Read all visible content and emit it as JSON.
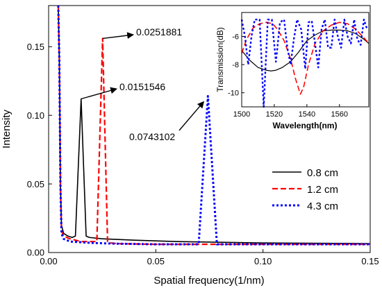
{
  "chart_data": [
    {
      "id": "main",
      "type": "line",
      "title": "",
      "xlabel": "Spatial frequency(1/nm)",
      "ylabel": "Intensity",
      "xlim": [
        0,
        0.15
      ],
      "ylim": [
        0,
        0.18
      ],
      "xticks": [
        0.0,
        0.05,
        0.1,
        0.15
      ],
      "xtick_labels": [
        "0.00",
        "0.05",
        "0.10",
        "0.15"
      ],
      "yticks": [
        0.0,
        0.05,
        0.1,
        0.15
      ],
      "ytick_labels": [
        "0.00",
        "0.05",
        "0.10",
        "0.15"
      ],
      "grid": false,
      "legend_position": "lower-right",
      "series": [
        {
          "name": "0.8 cm",
          "color": "#000000",
          "dash": "solid",
          "x": [
            0.0045,
            0.005,
            0.0055,
            0.006,
            0.007,
            0.009,
            0.011,
            0.0125,
            0.0151546,
            0.0175,
            0.019,
            0.025,
            0.04,
            0.06,
            0.08,
            0.1,
            0.12,
            0.15
          ],
          "y": [
            0.18,
            0.14,
            0.05,
            0.02,
            0.014,
            0.012,
            0.011,
            0.012,
            0.112,
            0.012,
            0.011,
            0.01,
            0.009,
            0.008,
            0.0075,
            0.007,
            0.0068,
            0.0065
          ]
        },
        {
          "name": "1.2 cm",
          "color": "#ff0000",
          "dash": "dashed",
          "x": [
            0.0045,
            0.005,
            0.0055,
            0.006,
            0.007,
            0.01,
            0.015,
            0.02,
            0.0225,
            0.0251881,
            0.0275,
            0.029,
            0.032,
            0.05,
            0.08,
            0.1,
            0.12,
            0.15
          ],
          "y": [
            0.18,
            0.14,
            0.05,
            0.016,
            0.012,
            0.01,
            0.008,
            0.008,
            0.008,
            0.156,
            0.008,
            0.007,
            0.0065,
            0.006,
            0.006,
            0.006,
            0.006,
            0.006
          ]
        },
        {
          "name": "4.3 cm",
          "color": "#0000ff",
          "dash": "dotted",
          "x": [
            0.0045,
            0.005,
            0.0055,
            0.006,
            0.007,
            0.01,
            0.02,
            0.03,
            0.05,
            0.065,
            0.07,
            0.0743102,
            0.0785,
            0.082,
            0.1,
            0.12,
            0.15
          ],
          "y": [
            0.18,
            0.14,
            0.05,
            0.014,
            0.01,
            0.008,
            0.007,
            0.0065,
            0.006,
            0.006,
            0.006,
            0.114,
            0.006,
            0.006,
            0.006,
            0.006,
            0.006
          ]
        }
      ],
      "annotations": [
        {
          "text": "0.0251881",
          "tip_x": 0.0251881,
          "tip_y": 0.156
        },
        {
          "text": "0.0151546",
          "tip_x": 0.0151546,
          "tip_y": 0.112
        },
        {
          "text": "0.0743102",
          "tip_x": 0.0743102,
          "tip_y": 0.114
        }
      ]
    },
    {
      "id": "inset",
      "type": "line",
      "title": "",
      "xlabel": "Wavelength(nm)",
      "ylabel": "Transmission(dB)",
      "xlim": [
        1500,
        1578
      ],
      "ylim": [
        -11,
        -4.3
      ],
      "xticks": [
        1500,
        1520,
        1540,
        1560
      ],
      "xtick_labels": [
        "1500",
        "1520",
        "1540",
        "1560"
      ],
      "yticks": [
        -10,
        -8,
        -6
      ],
      "ytick_labels": [
        "-10",
        "-8",
        "-6"
      ],
      "grid": false,
      "series": [
        {
          "name": "0.8 cm",
          "color": "#000000",
          "dash": "solid",
          "x": [
            1500,
            1505,
            1510,
            1515,
            1518,
            1521,
            1525,
            1530,
            1535,
            1540,
            1545,
            1550,
            1555,
            1560,
            1565,
            1570,
            1575,
            1578
          ],
          "y": [
            -7.0,
            -7.7,
            -8.2,
            -8.4,
            -8.45,
            -8.4,
            -8.2,
            -7.8,
            -7.1,
            -6.3,
            -5.9,
            -5.6,
            -5.55,
            -5.55,
            -5.6,
            -5.8,
            -6.2,
            -6.5
          ]
        },
        {
          "name": "1.2 cm",
          "color": "#ff0000",
          "dash": "dashed",
          "x": [
            1500,
            1503,
            1507,
            1511,
            1515,
            1519,
            1522,
            1526,
            1530,
            1533,
            1536,
            1538,
            1541,
            1545,
            1550,
            1555,
            1560,
            1565,
            1570,
            1575,
            1578
          ],
          "y": [
            -7.2,
            -6.2,
            -5.4,
            -5.1,
            -5.0,
            -5.1,
            -5.5,
            -6.3,
            -7.6,
            -9.0,
            -10.1,
            -9.6,
            -8.0,
            -6.5,
            -5.6,
            -5.2,
            -5.0,
            -5.1,
            -5.5,
            -6.1,
            -6.5
          ]
        },
        {
          "name": "4.3 cm",
          "color": "#0000ff",
          "dash": "dotted",
          "x": [
            1500,
            1502,
            1504,
            1506,
            1508,
            1511,
            1513.5,
            1516,
            1518.5,
            1521,
            1523.5,
            1526,
            1528,
            1530,
            1532,
            1534,
            1536.5,
            1539,
            1541,
            1543,
            1545,
            1547,
            1549,
            1551,
            1553,
            1555,
            1557,
            1559,
            1561,
            1563,
            1565,
            1567,
            1569,
            1571,
            1573,
            1575,
            1577
          ],
          "y": [
            -4.8,
            -6.0,
            -8.0,
            -6.0,
            -4.8,
            -4.8,
            -11.0,
            -4.8,
            -4.8,
            -7.8,
            -5.0,
            -4.8,
            -6.8,
            -8.0,
            -6.2,
            -4.8,
            -5.5,
            -8.3,
            -5.0,
            -4.9,
            -6.5,
            -8.2,
            -5.5,
            -4.8,
            -6.8,
            -6.8,
            -4.8,
            -6.0,
            -6.8,
            -4.8,
            -6.0,
            -6.5,
            -4.8,
            -6.2,
            -6.6,
            -4.8,
            -5.5
          ]
        }
      ]
    }
  ]
}
